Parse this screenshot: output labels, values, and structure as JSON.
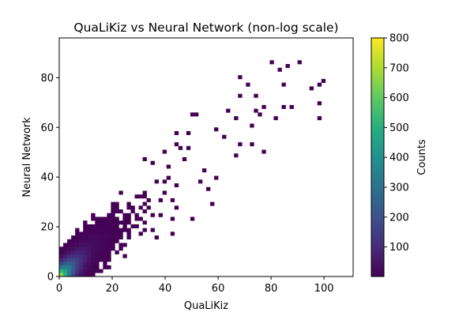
{
  "chart_data": {
    "type": "heatmap",
    "title": "QuaLiKiz vs Neural Network (non-log scale)",
    "xlabel": "QuaLiKiz",
    "ylabel": "Neural Network",
    "colorbar_label": "Counts",
    "xlim": [
      0,
      111
    ],
    "ylim": [
      0,
      96
    ],
    "x_ticks": [
      0,
      20,
      40,
      60,
      80,
      100
    ],
    "y_ticks": [
      0,
      20,
      40,
      60,
      80
    ],
    "colorbar_range": [
      1,
      800
    ],
    "colorbar_ticks": [
      100,
      200,
      300,
      400,
      500,
      600,
      700,
      800
    ],
    "colormap": "viridis",
    "bin_width": 1.5,
    "distribution": {
      "relation": "Neural Network ≈ QuaLiKiz",
      "x_range": [
        0,
        100
      ],
      "y_range": [
        0,
        88
      ],
      "peak_location": [
        1.5,
        1.5
      ],
      "peak_count": 800
    },
    "grid": false,
    "legend": "colorbar-right"
  },
  "colors": {
    "background": "#ffffff",
    "axes": "#000000"
  }
}
